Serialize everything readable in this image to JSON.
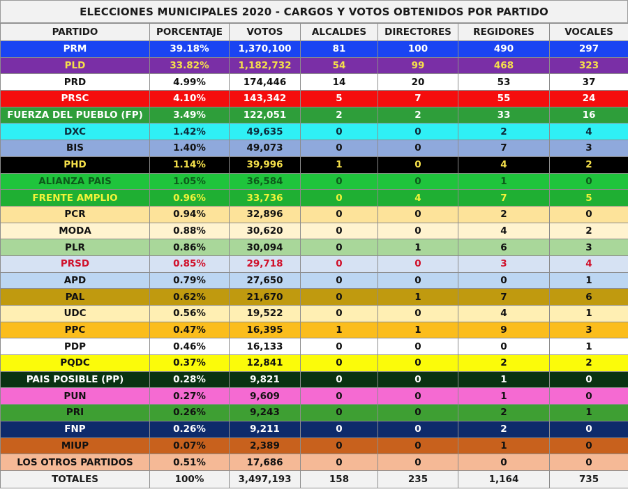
{
  "title": "ELECCIONES MUNICIPALES 2020 - CARGOS Y VOTOS OBTENIDOS POR PARTIDO",
  "headers": [
    "PARTIDO",
    "PORCENTAJE",
    "VOTOS",
    "ALCALDES",
    "DIRECTORES",
    "REGIDORES",
    "VOCALES"
  ],
  "rows": [
    {
      "cells": [
        "PRM",
        "39.18%",
        "1,370,100",
        "81",
        "100",
        "490",
        "297"
      ],
      "bg": "#1a44f2",
      "fg": "#ffffff"
    },
    {
      "cells": [
        "PLD",
        "33.82%",
        "1,182,732",
        "54",
        "99",
        "468",
        "323"
      ],
      "bg": "#7a2fa6",
      "fg": "#f5e04a"
    },
    {
      "cells": [
        "PRD",
        "4.99%",
        "174,446",
        "14",
        "20",
        "53",
        "37"
      ],
      "bg": "#ffffff",
      "fg": "#111111"
    },
    {
      "cells": [
        "PRSC",
        "4.10%",
        "143,342",
        "5",
        "7",
        "55",
        "24"
      ],
      "bg": "#f50d0d",
      "fg": "#ffffff"
    },
    {
      "cells": [
        "FUERZA DEL PUEBLO (FP)",
        "3.49%",
        "122,051",
        "2",
        "2",
        "33",
        "16"
      ],
      "bg": "#2e9e3a",
      "fg": "#ffffff"
    },
    {
      "cells": [
        "DXC",
        "1.42%",
        "49,635",
        "0",
        "0",
        "2",
        "4"
      ],
      "bg": "#2ff0f5",
      "fg": "#0d2a3a"
    },
    {
      "cells": [
        "BIS",
        "1.40%",
        "49,073",
        "0",
        "0",
        "7",
        "3"
      ],
      "bg": "#8fa9dc",
      "fg": "#111111"
    },
    {
      "cells": [
        "PHD",
        "1.14%",
        "39,996",
        "1",
        "0",
        "4",
        "2"
      ],
      "bg": "#000000",
      "fg": "#f5e04a"
    },
    {
      "cells": [
        "ALIANZA PAIS",
        "1.05%",
        "36,584",
        "0",
        "0",
        "1",
        "0"
      ],
      "bg": "#1fc43c",
      "fg": "#0d5a1a"
    },
    {
      "cells": [
        "FRENTE AMPLIO",
        "0.96%",
        "33,736",
        "0",
        "4",
        "7",
        "5"
      ],
      "bg": "#1faf33",
      "fg": "#f3f33a"
    },
    {
      "cells": [
        "PCR",
        "0.94%",
        "32,896",
        "0",
        "0",
        "2",
        "0"
      ],
      "bg": "#fde39a",
      "fg": "#111111"
    },
    {
      "cells": [
        "MODA",
        "0.88%",
        "30,620",
        "0",
        "0",
        "4",
        "2"
      ],
      "bg": "#fff3cf",
      "fg": "#111111"
    },
    {
      "cells": [
        "PLR",
        "0.86%",
        "30,094",
        "0",
        "1",
        "6",
        "3"
      ],
      "bg": "#a9d79a",
      "fg": "#111111"
    },
    {
      "cells": [
        "PRSD",
        "0.85%",
        "29,718",
        "0",
        "0",
        "3",
        "4"
      ],
      "bg": "#d6e2f3",
      "fg": "#d0102a"
    },
    {
      "cells": [
        "APD",
        "0.79%",
        "27,650",
        "0",
        "0",
        "0",
        "1"
      ],
      "bg": "#bcd6f2",
      "fg": "#111111"
    },
    {
      "cells": [
        "PAL",
        "0.62%",
        "21,670",
        "0",
        "1",
        "7",
        "6"
      ],
      "bg": "#c09a0f",
      "fg": "#111111"
    },
    {
      "cells": [
        "UDC",
        "0.56%",
        "19,522",
        "0",
        "0",
        "4",
        "1"
      ],
      "bg": "#ffefb3",
      "fg": "#111111"
    },
    {
      "cells": [
        "PPC",
        "0.47%",
        "16,395",
        "1",
        "1",
        "9",
        "3"
      ],
      "bg": "#fbbd1c",
      "fg": "#111111"
    },
    {
      "cells": [
        "PDP",
        "0.46%",
        "16,133",
        "0",
        "0",
        "0",
        "1"
      ],
      "bg": "#ffffff",
      "fg": "#111111"
    },
    {
      "cells": [
        "PQDC",
        "0.37%",
        "12,841",
        "0",
        "0",
        "2",
        "2"
      ],
      "bg": "#fbfb0a",
      "fg": "#111111"
    },
    {
      "cells": [
        "PAIS POSIBLE (PP)",
        "0.28%",
        "9,821",
        "0",
        "0",
        "1",
        "0"
      ],
      "bg": "#0a3212",
      "fg": "#ffffff"
    },
    {
      "cells": [
        "PUN",
        "0.27%",
        "9,609",
        "0",
        "0",
        "1",
        "0"
      ],
      "bg": "#f56ad2",
      "fg": "#111111"
    },
    {
      "cells": [
        "PRI",
        "0.26%",
        "9,243",
        "0",
        "0",
        "2",
        "1"
      ],
      "bg": "#3e9f33",
      "fg": "#111111"
    },
    {
      "cells": [
        "FNP",
        "0.26%",
        "9,211",
        "0",
        "0",
        "2",
        "0"
      ],
      "bg": "#0e2b6b",
      "fg": "#ffffff"
    },
    {
      "cells": [
        "MIUP",
        "0.07%",
        "2,389",
        "0",
        "0",
        "1",
        "0"
      ],
      "bg": "#c8611d",
      "fg": "#111111"
    },
    {
      "cells": [
        "LOS OTROS PARTIDOS",
        "0.51%",
        "17,686",
        "0",
        "0",
        "0",
        "0"
      ],
      "bg": "#f5b996",
      "fg": "#111111"
    }
  ],
  "totals": [
    "TOTALES",
    "100%",
    "3,497,193",
    "158",
    "235",
    "1,164",
    "735"
  ]
}
